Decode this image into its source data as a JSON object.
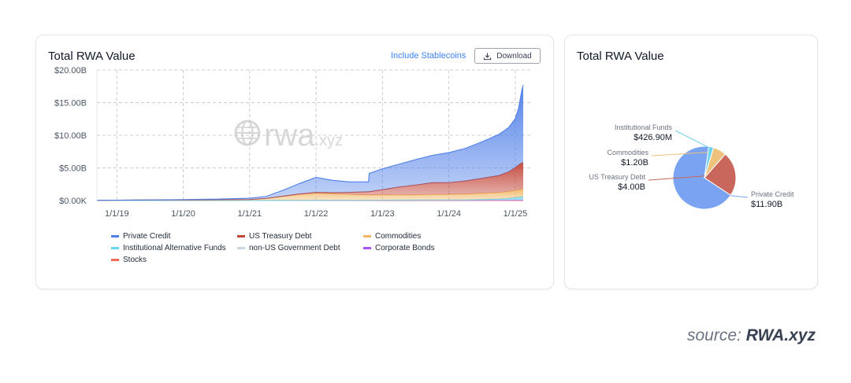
{
  "area_card": {
    "title": "Total RWA Value",
    "stablecoin_label": "Include Stablecoins",
    "download_label": "Download",
    "watermark": "rwa",
    "watermark_suffix": ".xyz"
  },
  "pie_card": {
    "title": "Total RWA Value"
  },
  "source": {
    "prefix": "source: ",
    "brand": "RWA.xyz"
  },
  "chart_data": [
    {
      "type": "area",
      "stacked": true,
      "x_ticks": [
        "1/1/19",
        "1/1/20",
        "1/1/21",
        "1/1/22",
        "1/1/23",
        "1/1/24",
        "1/1/25"
      ],
      "y_ticks": [
        "$0.00K",
        "$5.00B",
        "$10.00B",
        "$15.00B",
        "$20.00B"
      ],
      "ylim": [
        0,
        20
      ],
      "grid": true,
      "legend_position": "bottom",
      "x": [
        2018.7,
        2019.0,
        2019.5,
        2020.0,
        2020.5,
        2021.0,
        2021.25,
        2021.5,
        2021.75,
        2022.0,
        2022.25,
        2022.5,
        2022.79,
        2022.8,
        2023.0,
        2023.25,
        2023.5,
        2023.75,
        2024.0,
        2024.25,
        2024.5,
        2024.75,
        2024.9,
        2025.0,
        2025.05,
        2025.1,
        2025.12
      ],
      "series": [
        {
          "name": "Stocks",
          "color": "#f26b5b",
          "values": [
            0,
            0,
            0,
            0,
            0,
            0,
            0,
            0,
            0,
            0,
            0,
            0,
            0,
            0,
            0,
            0,
            0,
            0,
            0,
            0,
            0,
            0,
            0,
            0.01,
            0.01,
            0.01,
            0.01
          ]
        },
        {
          "name": "Corporate Bonds",
          "color": "#a855f7",
          "values": [
            0,
            0,
            0,
            0,
            0,
            0,
            0.01,
            0.02,
            0.03,
            0.04,
            0.05,
            0.05,
            0.05,
            0.05,
            0.05,
            0.05,
            0.05,
            0.05,
            0.05,
            0.05,
            0.05,
            0.05,
            0.05,
            0.05,
            0.05,
            0.05,
            0.05
          ]
        },
        {
          "name": "non-US Government Debt",
          "color": "#cbd5e1",
          "values": [
            0,
            0,
            0,
            0,
            0,
            0,
            0,
            0,
            0,
            0,
            0,
            0,
            0,
            0,
            0.01,
            0.02,
            0.03,
            0.03,
            0.04,
            0.05,
            0.06,
            0.07,
            0.08,
            0.09,
            0.09,
            0.1,
            0.1
          ]
        },
        {
          "name": "Institutional Alternative Funds",
          "color": "#67d6ef",
          "values": [
            0,
            0,
            0,
            0,
            0,
            0,
            0,
            0,
            0,
            0,
            0,
            0,
            0,
            0,
            0,
            0,
            0,
            0,
            0,
            0,
            0.05,
            0.1,
            0.2,
            0.3,
            0.35,
            0.4,
            0.43
          ]
        },
        {
          "name": "Commodities",
          "color": "#f2b766",
          "values": [
            0.03,
            0.05,
            0.08,
            0.1,
            0.12,
            0.15,
            0.3,
            0.6,
            0.9,
            1.1,
            1.0,
            0.9,
            0.8,
            0.8,
            0.8,
            0.8,
            0.8,
            0.85,
            0.85,
            0.9,
            0.95,
            1.0,
            1.05,
            1.1,
            1.15,
            1.2,
            1.2
          ]
        },
        {
          "name": "US Treasury Debt",
          "color": "#c2473a",
          "values": [
            0,
            0,
            0,
            0,
            0,
            0,
            0.02,
            0.05,
            0.08,
            0.1,
            0.15,
            0.3,
            0.5,
            0.5,
            0.8,
            1.2,
            1.5,
            1.8,
            1.8,
            2.0,
            2.3,
            2.6,
            3.0,
            3.5,
            3.8,
            4.0,
            4.0
          ]
        },
        {
          "name": "Private Credit",
          "color": "#4f7fe8",
          "values": [
            0,
            0.01,
            0.02,
            0.05,
            0.1,
            0.2,
            0.3,
            0.9,
            1.6,
            2.3,
            1.9,
            1.6,
            1.5,
            2.8,
            3.2,
            3.5,
            3.9,
            4.2,
            4.6,
            5.0,
            5.6,
            6.3,
            6.8,
            7.5,
            8.7,
            11.2,
            11.9
          ]
        }
      ]
    },
    {
      "type": "pie",
      "slices": [
        {
          "label": "Private Credit",
          "value_label": "$11.90B",
          "value": 11.9,
          "color": "#7aa3f2"
        },
        {
          "label": "US Treasury Debt",
          "value_label": "$4.00B",
          "value": 4.0,
          "color": "#c9675c"
        },
        {
          "label": "Commodities",
          "value_label": "$1.20B",
          "value": 1.2,
          "color": "#edc27c"
        },
        {
          "label": "Institutional Funds",
          "value_label": "$426.90M",
          "value": 0.4269,
          "color": "#6fd3ec"
        }
      ]
    }
  ]
}
